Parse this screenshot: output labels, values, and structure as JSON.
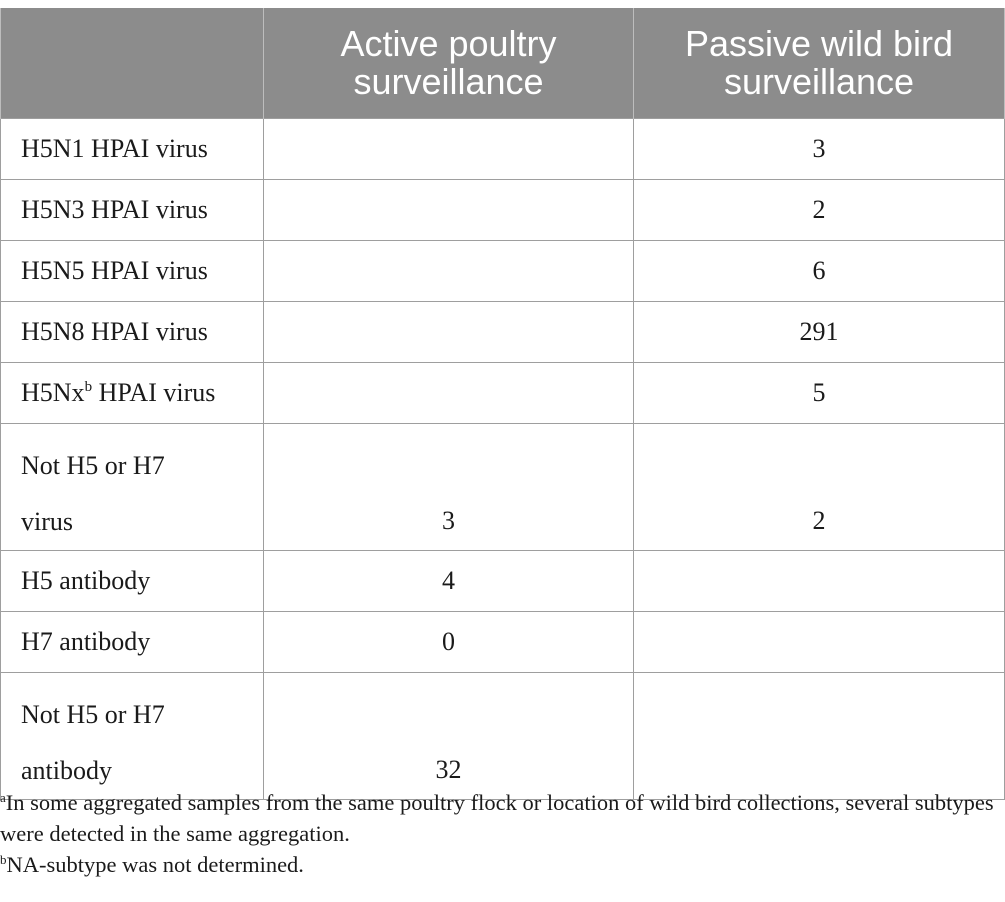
{
  "table": {
    "headers": [
      "",
      "Active poultry surveillance",
      "Passive wild bird surveillance"
    ],
    "rows": [
      {
        "label": "H5N1 HPAI virus",
        "active": "",
        "passive": "3"
      },
      {
        "label": "H5N3 HPAI virus",
        "active": "",
        "passive": "2"
      },
      {
        "label": "H5N5 HPAI virus",
        "active": "",
        "passive": "6"
      },
      {
        "label": "H5N8 HPAI virus",
        "active": "",
        "passive": "291"
      },
      {
        "label_main": "H5Nx",
        "label_sup": "b",
        "label_rest": " HPAI virus",
        "active": "",
        "passive": "5"
      },
      {
        "label_line1": "Not H5 or H7",
        "label_line2": "virus",
        "active": "3",
        "passive": "2"
      },
      {
        "label": "H5 antibody",
        "active": "4",
        "passive": ""
      },
      {
        "label": "H7 antibody",
        "active": "0",
        "passive": ""
      },
      {
        "label_line1": "Not H5 or H7",
        "label_line2": "antibody",
        "active": "32",
        "passive": ""
      }
    ]
  },
  "footnotes": [
    {
      "mark": "a",
      "text": "In some aggregated samples from the same poultry flock or location of wild bird collections, several subtypes were detected in the same aggregation."
    },
    {
      "mark": "b",
      "text": "NA-subtype was not determined."
    }
  ]
}
